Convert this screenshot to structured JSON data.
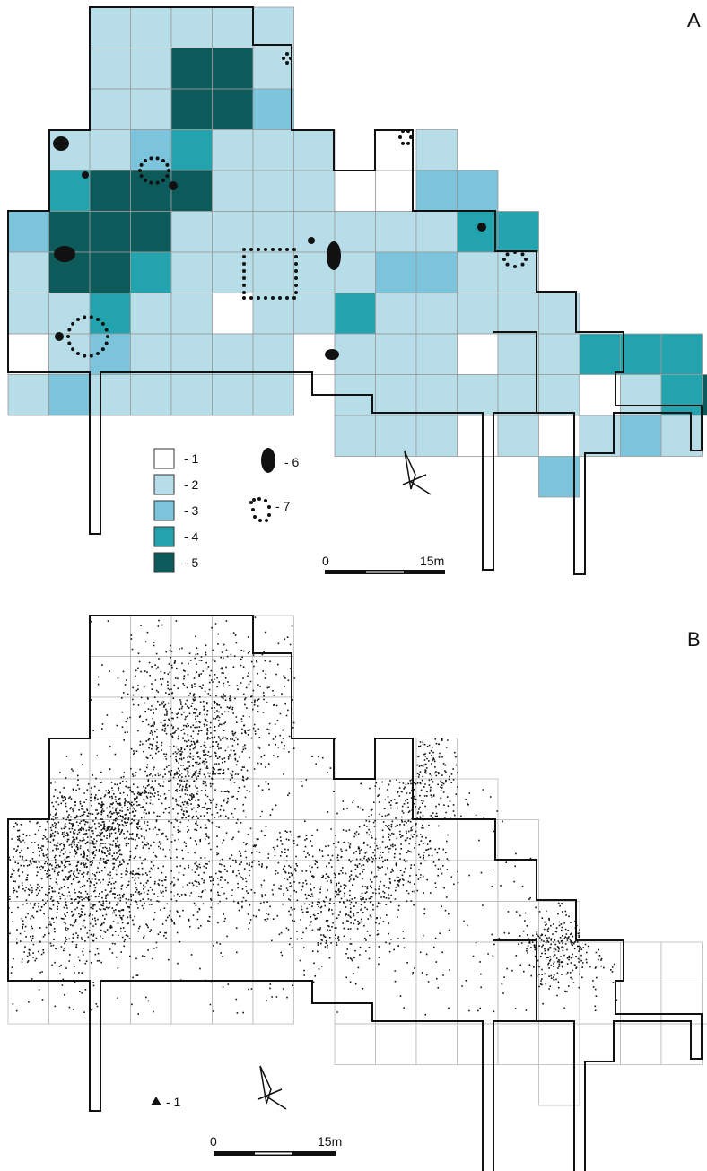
{
  "panels": {
    "a_label": "A",
    "b_label": "B"
  },
  "colors": {
    "1": "#ffffff",
    "2": "#b7dde9",
    "3": "#7cc4dc",
    "4": "#22a3ae",
    "5": "#0d5a5a",
    "grid": "#9a9a9a",
    "outline": "#111111"
  },
  "panel_a": {
    "grid_rows": [
      "..22222.........",
      "..22552.........",
      "..22553.........",
      ".2234222..2.....",
      ".45552221133....",
      "3555222222244...",
      "2554222223322...",
      "22422122422222..",
      "12322221222122444.",
      "2322222.2222221245",
      "........22212.232.",
      ".............3...."
    ],
    "legend": [
      {
        "code": "1",
        "label": "- 1"
      },
      {
        "code": "2",
        "label": "- 2"
      },
      {
        "code": "3",
        "label": "- 3"
      },
      {
        "code": "4",
        "label": "- 4"
      },
      {
        "code": "5",
        "label": "- 5"
      }
    ],
    "legend_symbols": [
      {
        "icon": "pit-oval-icon",
        "label": "- 6"
      },
      {
        "icon": "dotted-ring-icon",
        "label": "- 7"
      }
    ],
    "scale_bar": {
      "start": "0",
      "end": "15m"
    }
  },
  "panel_b": {
    "legend": [
      {
        "icon": "triangle-icon",
        "label": "- 1"
      }
    ],
    "scale_bar": {
      "start": "0",
      "end": "15m"
    }
  }
}
